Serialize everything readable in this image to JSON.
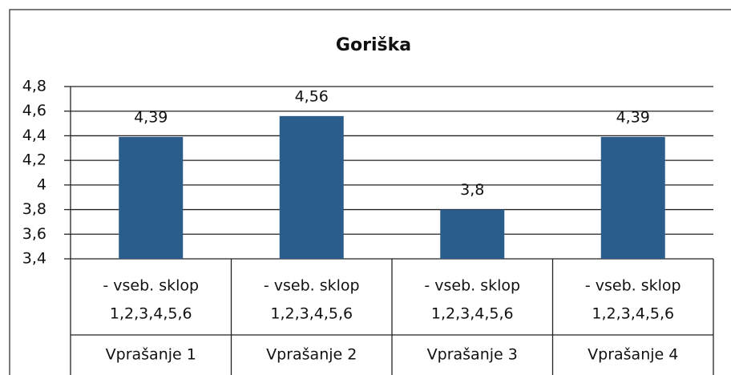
{
  "chart_data": {
    "type": "bar",
    "title": "Goriška",
    "categories": [
      "Vprašanje 1",
      "Vprašanje 2",
      "Vprašanje 3",
      "Vprašanje 4"
    ],
    "sublabels": [
      [
        "- vseb. sklop",
        "1,2,3,4,5,6"
      ],
      [
        "- vseb. sklop",
        "1,2,3,4,5,6"
      ],
      [
        "- vseb. sklop",
        "1,2,3,4,5,6"
      ],
      [
        "- vseb. sklop",
        "1,2,3,4,5,6"
      ]
    ],
    "values": [
      4.39,
      4.56,
      3.8,
      4.39
    ],
    "value_labels": [
      "4,39",
      "4,56",
      "3,8",
      "4,39"
    ],
    "color": "#2b5d8c",
    "ylim": [
      3.4,
      4.8
    ],
    "yticks": [
      {
        "value": 3.4,
        "label": "3,4"
      },
      {
        "value": 3.6,
        "label": "3,6"
      },
      {
        "value": 3.8,
        "label": "3,8"
      },
      4,
      {
        "value": 4.2,
        "label": "4,2"
      },
      {
        "value": 4.4,
        "label": "4,4"
      },
      {
        "value": 4.6,
        "label": "4,6"
      },
      {
        "value": 4.8,
        "label": "4,8"
      }
    ],
    "grid": true
  }
}
